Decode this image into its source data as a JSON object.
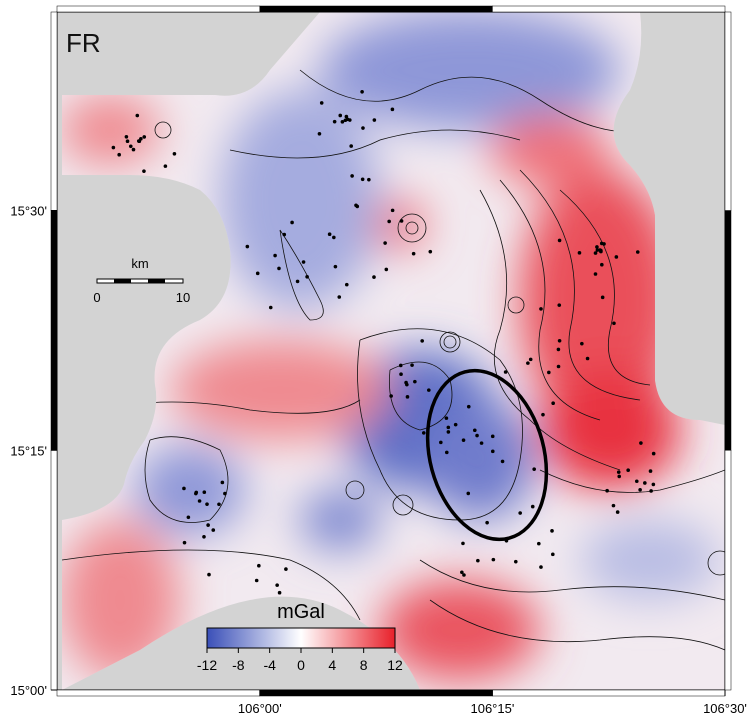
{
  "title": "FR",
  "scale_bar": {
    "label": "km",
    "ticks": [
      0,
      10
    ]
  },
  "colorbar": {
    "label": "mGal",
    "range": [
      -12,
      12
    ],
    "ticks": [
      -12,
      -8,
      -4,
      0,
      4,
      8,
      12
    ],
    "colors": [
      "#3a4fb8",
      "#ffffff",
      "#e8202a"
    ]
  },
  "frame": {
    "lat_lim": [
      15,
      15.707
    ],
    "lon_lim": [
      105.782,
      106.5
    ],
    "lat_ticks": [
      {
        "value": 15.0,
        "label": "15°00'"
      },
      {
        "value": 15.25,
        "label": "15°15'"
      },
      {
        "value": 15.5,
        "label": "15°30'"
      }
    ],
    "lon_ticks": [
      {
        "value": 106.0,
        "label": "106°00'"
      },
      {
        "value": 106.25,
        "label": "106°15'"
      },
      {
        "value": 106.5,
        "label": "106°30'"
      }
    ]
  }
}
